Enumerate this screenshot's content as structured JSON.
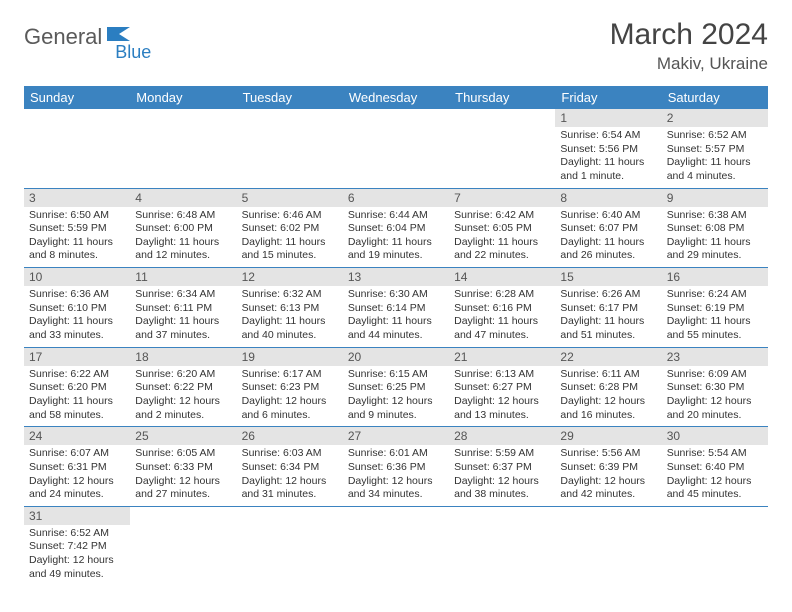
{
  "logo": {
    "text1": "General",
    "text2": "Blue"
  },
  "title": "March 2024",
  "location": "Makiv, Ukraine",
  "colors": {
    "headerBg": "#3b83c0",
    "headerText": "#ffffff",
    "dayNumBg": "#e4e4e4",
    "borderColor": "#3b83c0",
    "logoGray": "#5a5a5a",
    "logoBlue": "#2b7ec1"
  },
  "dayHeaders": [
    "Sunday",
    "Monday",
    "Tuesday",
    "Wednesday",
    "Thursday",
    "Friday",
    "Saturday"
  ],
  "weeks": [
    [
      null,
      null,
      null,
      null,
      null,
      {
        "n": "1",
        "sr": "6:54 AM",
        "ss": "5:56 PM",
        "dl": "11 hours and 1 minute."
      },
      {
        "n": "2",
        "sr": "6:52 AM",
        "ss": "5:57 PM",
        "dl": "11 hours and 4 minutes."
      }
    ],
    [
      {
        "n": "3",
        "sr": "6:50 AM",
        "ss": "5:59 PM",
        "dl": "11 hours and 8 minutes."
      },
      {
        "n": "4",
        "sr": "6:48 AM",
        "ss": "6:00 PM",
        "dl": "11 hours and 12 minutes."
      },
      {
        "n": "5",
        "sr": "6:46 AM",
        "ss": "6:02 PM",
        "dl": "11 hours and 15 minutes."
      },
      {
        "n": "6",
        "sr": "6:44 AM",
        "ss": "6:04 PM",
        "dl": "11 hours and 19 minutes."
      },
      {
        "n": "7",
        "sr": "6:42 AM",
        "ss": "6:05 PM",
        "dl": "11 hours and 22 minutes."
      },
      {
        "n": "8",
        "sr": "6:40 AM",
        "ss": "6:07 PM",
        "dl": "11 hours and 26 minutes."
      },
      {
        "n": "9",
        "sr": "6:38 AM",
        "ss": "6:08 PM",
        "dl": "11 hours and 29 minutes."
      }
    ],
    [
      {
        "n": "10",
        "sr": "6:36 AM",
        "ss": "6:10 PM",
        "dl": "11 hours and 33 minutes."
      },
      {
        "n": "11",
        "sr": "6:34 AM",
        "ss": "6:11 PM",
        "dl": "11 hours and 37 minutes."
      },
      {
        "n": "12",
        "sr": "6:32 AM",
        "ss": "6:13 PM",
        "dl": "11 hours and 40 minutes."
      },
      {
        "n": "13",
        "sr": "6:30 AM",
        "ss": "6:14 PM",
        "dl": "11 hours and 44 minutes."
      },
      {
        "n": "14",
        "sr": "6:28 AM",
        "ss": "6:16 PM",
        "dl": "11 hours and 47 minutes."
      },
      {
        "n": "15",
        "sr": "6:26 AM",
        "ss": "6:17 PM",
        "dl": "11 hours and 51 minutes."
      },
      {
        "n": "16",
        "sr": "6:24 AM",
        "ss": "6:19 PM",
        "dl": "11 hours and 55 minutes."
      }
    ],
    [
      {
        "n": "17",
        "sr": "6:22 AM",
        "ss": "6:20 PM",
        "dl": "11 hours and 58 minutes."
      },
      {
        "n": "18",
        "sr": "6:20 AM",
        "ss": "6:22 PM",
        "dl": "12 hours and 2 minutes."
      },
      {
        "n": "19",
        "sr": "6:17 AM",
        "ss": "6:23 PM",
        "dl": "12 hours and 6 minutes."
      },
      {
        "n": "20",
        "sr": "6:15 AM",
        "ss": "6:25 PM",
        "dl": "12 hours and 9 minutes."
      },
      {
        "n": "21",
        "sr": "6:13 AM",
        "ss": "6:27 PM",
        "dl": "12 hours and 13 minutes."
      },
      {
        "n": "22",
        "sr": "6:11 AM",
        "ss": "6:28 PM",
        "dl": "12 hours and 16 minutes."
      },
      {
        "n": "23",
        "sr": "6:09 AM",
        "ss": "6:30 PM",
        "dl": "12 hours and 20 minutes."
      }
    ],
    [
      {
        "n": "24",
        "sr": "6:07 AM",
        "ss": "6:31 PM",
        "dl": "12 hours and 24 minutes."
      },
      {
        "n": "25",
        "sr": "6:05 AM",
        "ss": "6:33 PM",
        "dl": "12 hours and 27 minutes."
      },
      {
        "n": "26",
        "sr": "6:03 AM",
        "ss": "6:34 PM",
        "dl": "12 hours and 31 minutes."
      },
      {
        "n": "27",
        "sr": "6:01 AM",
        "ss": "6:36 PM",
        "dl": "12 hours and 34 minutes."
      },
      {
        "n": "28",
        "sr": "5:59 AM",
        "ss": "6:37 PM",
        "dl": "12 hours and 38 minutes."
      },
      {
        "n": "29",
        "sr": "5:56 AM",
        "ss": "6:39 PM",
        "dl": "12 hours and 42 minutes."
      },
      {
        "n": "30",
        "sr": "5:54 AM",
        "ss": "6:40 PM",
        "dl": "12 hours and 45 minutes."
      }
    ],
    [
      {
        "n": "31",
        "sr": "6:52 AM",
        "ss": "7:42 PM",
        "dl": "12 hours and 49 minutes."
      },
      null,
      null,
      null,
      null,
      null,
      null
    ]
  ],
  "labels": {
    "sunrise": "Sunrise:",
    "sunset": "Sunset:",
    "daylight": "Daylight:"
  }
}
